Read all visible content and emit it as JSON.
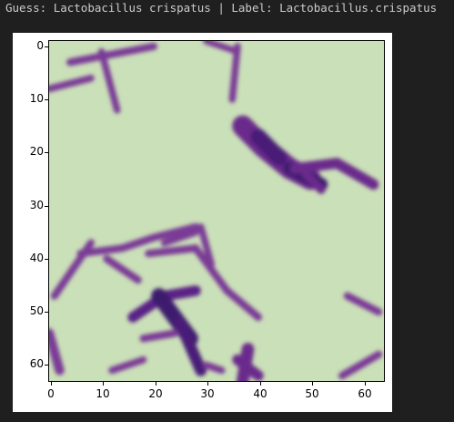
{
  "output": {
    "guess_prefix": "Guess:",
    "guess_value": "Lactobacillus crispatus",
    "separator": "|",
    "label_prefix": "Label:",
    "label_value": "Lactobacillus.crispatus"
  },
  "plot": {
    "image_description_size": 64,
    "x_ticks": [
      "0",
      "10",
      "20",
      "30",
      "40",
      "50",
      "60"
    ],
    "y_ticks": [
      "0",
      "10",
      "20",
      "30",
      "40",
      "50",
      "60"
    ],
    "colors": {
      "background": "#c6deb4",
      "stain": "#6b2a8c",
      "stain_dark": "#3d1a6e"
    }
  }
}
